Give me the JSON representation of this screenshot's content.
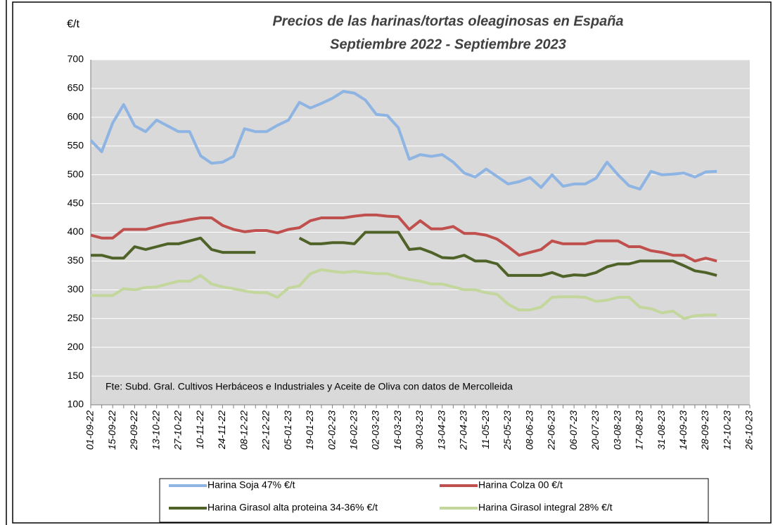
{
  "chart_data": {
    "type": "line",
    "title": "Precios de las harinas/tortas oleaginosas en España",
    "subtitle": "Septiembre 2022 - Septiembre 2023",
    "y_label": "€/t",
    "annotation": "Fte: Subd. Gral. Cultivos Herbáceos e Industriales y Aceite de Oliva con datos de Mercolleida",
    "categories": [
      "01-09-22",
      null,
      "15-09-22",
      null,
      "29-09-22",
      null,
      "13-10-22",
      null,
      "27-10-22",
      null,
      "10-11-22",
      null,
      "24-11-22",
      null,
      "08-12-22",
      null,
      "22-12-22",
      null,
      "05-01-23",
      null,
      "19-01-23",
      null,
      "02-02-23",
      null,
      "16-02-23",
      null,
      "02-03-23",
      null,
      "16-03-23",
      null,
      "30-03-23",
      null,
      "13-04-23",
      null,
      "27-04-23",
      null,
      "11-05-23",
      null,
      "25-05-23",
      null,
      "08-06-23",
      null,
      "22-06-23",
      null,
      "06-07-23",
      null,
      "20-07-23",
      null,
      "03-08-23",
      null,
      "17-08-23",
      null,
      "31-08-23",
      null,
      "14-09-23",
      null,
      "28-09-23",
      null,
      "12-10-23",
      null,
      "26-10-23"
    ],
    "series": [
      {
        "name": "Harina Soja  47% €/t",
        "color": "#8eb4e3",
        "values": [
          560,
          540,
          590,
          622,
          585,
          575,
          595,
          585,
          575,
          575,
          533,
          520,
          522,
          532,
          580,
          575,
          575,
          586,
          595,
          626,
          616,
          624,
          633,
          645,
          642,
          630,
          605,
          603,
          582,
          527,
          535,
          532,
          535,
          522,
          503,
          496,
          510,
          497,
          484,
          488,
          495,
          478,
          500,
          480,
          484,
          484,
          494,
          522,
          500,
          481,
          475,
          506,
          500,
          501,
          503,
          496,
          505,
          506,
          null,
          null,
          null
        ]
      },
      {
        "name": "Harina Colza 00 €/t",
        "color": "#c0504d",
        "values": [
          395,
          390,
          390,
          405,
          405,
          405,
          410,
          415,
          418,
          422,
          425,
          425,
          412,
          405,
          401,
          403,
          403,
          399,
          405,
          408,
          420,
          425,
          425,
          425,
          428,
          430,
          430,
          428,
          427,
          405,
          420,
          406,
          406,
          410,
          398,
          398,
          395,
          388,
          375,
          360,
          365,
          370,
          385,
          380,
          380,
          380,
          385,
          385,
          385,
          375,
          375,
          368,
          365,
          360,
          360,
          350,
          355,
          350,
          null,
          null,
          null
        ]
      },
      {
        "name": "Harina Girasol alta proteina 34-36% €/t",
        "color": "#4f6228",
        "values": [
          360,
          360,
          355,
          355,
          375,
          370,
          375,
          380,
          380,
          385,
          390,
          370,
          365,
          365,
          365,
          365,
          null,
          null,
          null,
          390,
          380,
          380,
          382,
          382,
          380,
          400,
          400,
          400,
          400,
          370,
          372,
          365,
          356,
          355,
          360,
          350,
          350,
          345,
          325,
          325,
          325,
          325,
          330,
          323,
          326,
          325,
          330,
          340,
          345,
          345,
          350,
          350,
          350,
          350,
          342,
          333,
          330,
          325,
          null,
          null,
          null
        ]
      },
      {
        "name": "Harina Girasol integral 28% €/t",
        "color": "#c3d69b",
        "values": [
          290,
          290,
          290,
          302,
          300,
          304,
          305,
          310,
          315,
          315,
          325,
          310,
          305,
          302,
          298,
          295,
          295,
          287,
          303,
          307,
          328,
          335,
          332,
          330,
          332,
          330,
          328,
          328,
          322,
          318,
          315,
          310,
          310,
          305,
          300,
          300,
          295,
          292,
          275,
          265,
          265,
          270,
          287,
          288,
          288,
          287,
          280,
          282,
          287,
          287,
          270,
          267,
          260,
          263,
          250,
          255,
          256,
          256,
          null,
          null,
          null
        ]
      }
    ],
    "ylim": [
      100,
      700
    ],
    "yticks": [
      100,
      150,
      200,
      250,
      300,
      350,
      400,
      450,
      500,
      550,
      600,
      650,
      700
    ],
    "grid": true,
    "legend": "bottom",
    "plot_background": "#d9d9d9"
  }
}
